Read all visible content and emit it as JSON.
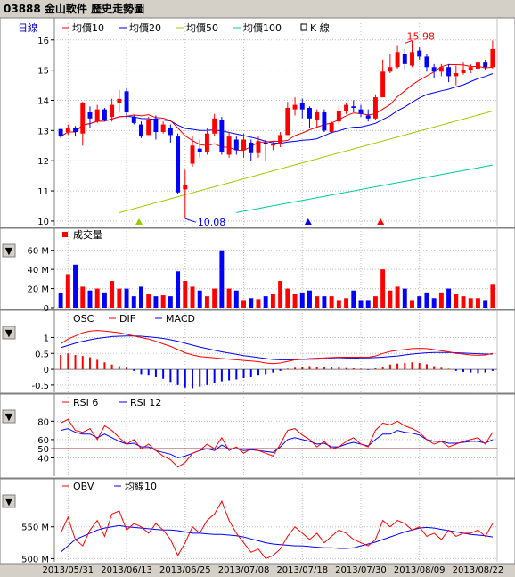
{
  "header": {
    "title": "03888 金山軟件  歷史走勢圖"
  },
  "toggle_glyph": "▼",
  "dates": [
    "2013/05/31",
    "2013/06/13",
    "2013/06/25",
    "2013/07/08",
    "2013/07/18",
    "2013/07/30",
    "2013/08/09",
    "2013/08/22"
  ],
  "colors": {
    "up": "#ff0000",
    "down": "#0000ff",
    "ma10": "#ff0000",
    "ma20": "#0000ff",
    "ma50": "#99cc00",
    "ma100": "#00cc99",
    "grid": "#c0c0c0"
  },
  "chart_data": [
    {
      "type": "candlestick",
      "panel": "price",
      "period_label": "日線",
      "legend": [
        "均價10",
        "均價20",
        "均價50",
        "均價100",
        "K 線"
      ],
      "ylim": [
        9.85,
        16.2
      ],
      "yticks": [
        10,
        11,
        12,
        13,
        14,
        15,
        16
      ],
      "annotations": {
        "high": "15.98",
        "low": "10.08"
      },
      "ohlc": [
        [
          13.05,
          12.8,
          13.05,
          12.75
        ],
        [
          12.95,
          13.1,
          13.2,
          12.85
        ],
        [
          13.1,
          12.95,
          13.15,
          12.8
        ],
        [
          12.9,
          13.9,
          13.95,
          12.5
        ],
        [
          13.6,
          13.4,
          13.8,
          13.1
        ],
        [
          13.3,
          13.7,
          13.85,
          13.25
        ],
        [
          13.7,
          13.35,
          13.75,
          13.3
        ],
        [
          13.45,
          13.85,
          14.05,
          13.3
        ],
        [
          13.9,
          14.05,
          14.35,
          13.6
        ],
        [
          14.3,
          13.6,
          14.4,
          13.4
        ],
        [
          13.45,
          13.25,
          13.5,
          13.2
        ],
        [
          13.2,
          12.8,
          13.3,
          12.75
        ],
        [
          12.85,
          13.35,
          13.45,
          12.85
        ],
        [
          13.4,
          12.95,
          13.5,
          12.7
        ],
        [
          12.95,
          13.2,
          13.3,
          12.9
        ],
        [
          13.1,
          12.85,
          13.2,
          12.6
        ],
        [
          12.8,
          10.95,
          12.9,
          10.9
        ],
        [
          11.05,
          11.2,
          11.7,
          10.1
        ],
        [
          11.9,
          12.5,
          12.8,
          11.8
        ],
        [
          12.4,
          12.3,
          12.7,
          12.1
        ],
        [
          12.3,
          12.9,
          13.1,
          12.2
        ],
        [
          12.9,
          13.4,
          13.55,
          12.8
        ],
        [
          13.35,
          12.3,
          13.45,
          12.2
        ],
        [
          12.2,
          12.8,
          12.95,
          12.1
        ],
        [
          12.7,
          12.35,
          12.8,
          12.2
        ],
        [
          12.35,
          12.7,
          12.9,
          12.1
        ],
        [
          12.6,
          12.25,
          12.7,
          12.0
        ],
        [
          12.25,
          12.65,
          12.8,
          12.1
        ],
        [
          12.6,
          12.55,
          12.7,
          12.0
        ],
        [
          12.5,
          12.55,
          12.65,
          12.35
        ],
        [
          12.55,
          12.85,
          12.95,
          12.45
        ],
        [
          12.85,
          13.75,
          13.95,
          12.85
        ],
        [
          13.7,
          13.85,
          14.1,
          13.5
        ],
        [
          13.9,
          13.7,
          14.05,
          13.4
        ],
        [
          13.75,
          13.4,
          13.8,
          13.1
        ],
        [
          13.35,
          13.6,
          13.7,
          13.1
        ],
        [
          13.6,
          13.0,
          13.7,
          12.95
        ],
        [
          12.95,
          13.25,
          13.3,
          12.9
        ],
        [
          13.3,
          13.65,
          13.8,
          13.2
        ],
        [
          13.65,
          13.85,
          13.9,
          13.55
        ],
        [
          13.8,
          13.75,
          14.0,
          13.6
        ],
        [
          13.7,
          13.55,
          13.85,
          13.45
        ],
        [
          13.5,
          13.4,
          13.7,
          13.3
        ],
        [
          13.4,
          14.1,
          14.2,
          13.35
        ],
        [
          14.1,
          14.95,
          15.35,
          14.1
        ],
        [
          14.95,
          15.1,
          15.55,
          14.9
        ],
        [
          15.1,
          15.6,
          15.8,
          15.05
        ],
        [
          15.55,
          15.2,
          15.7,
          15.0
        ],
        [
          15.15,
          15.6,
          15.98,
          15.1
        ],
        [
          15.65,
          15.45,
          15.75,
          15.35
        ],
        [
          15.45,
          15.1,
          15.55,
          14.95
        ],
        [
          15.1,
          14.95,
          15.2,
          14.75
        ],
        [
          14.95,
          15.1,
          15.2,
          14.8
        ],
        [
          15.1,
          14.8,
          15.2,
          14.6
        ],
        [
          14.8,
          14.9,
          15.15,
          14.5
        ],
        [
          14.9,
          15.0,
          15.25,
          14.85
        ],
        [
          15.0,
          15.1,
          15.2,
          14.9
        ],
        [
          15.05,
          15.25,
          15.35,
          14.95
        ],
        [
          15.25,
          15.1,
          15.35,
          15.0
        ],
        [
          15.1,
          15.7,
          15.98,
          15.05
        ]
      ]
    },
    {
      "type": "bar",
      "panel": "volume",
      "legend": [
        "成交量"
      ],
      "unit": "M",
      "ylim": [
        0,
        70
      ],
      "yticks": [
        0,
        20,
        40,
        60
      ],
      "ytick_labels": [
        "0",
        "20 M",
        "40 M",
        "60 M"
      ],
      "values": [
        15,
        35,
        45,
        22,
        18,
        20,
        16,
        28,
        20,
        20,
        12,
        22,
        14,
        12,
        13,
        12,
        38,
        28,
        22,
        18,
        12,
        20,
        60,
        20,
        18,
        8,
        10,
        9,
        12,
        14,
        28,
        20,
        14,
        16,
        18,
        12,
        12,
        12,
        8,
        10,
        18,
        8,
        8,
        12,
        40,
        18,
        22,
        20,
        8,
        12,
        16,
        10,
        16,
        20,
        14,
        12,
        10,
        10,
        8,
        24
      ]
    },
    {
      "type": "line+bar",
      "panel": "macd",
      "legend": [
        "OSC",
        "DIF",
        "MACD"
      ],
      "ylim": [
        -0.7,
        1.35
      ],
      "yticks": [
        -0.5,
        0,
        0.5,
        1
      ],
      "ytick_labels": [
        "-0.5",
        "0",
        "0.5",
        "1"
      ],
      "series": [
        {
          "name": "DIF",
          "values": [
            0.8,
            0.95,
            1.05,
            1.15,
            1.2,
            1.22,
            1.2,
            1.18,
            1.15,
            1.1,
            1.05,
            1.0,
            0.95,
            0.88,
            0.8,
            0.72,
            0.62,
            0.52,
            0.45,
            0.4,
            0.38,
            0.36,
            0.34,
            0.32,
            0.3,
            0.28,
            0.26,
            0.24,
            0.2,
            0.18,
            0.2,
            0.25,
            0.3,
            0.32,
            0.34,
            0.35,
            0.36,
            0.37,
            0.38,
            0.38,
            0.38,
            0.38,
            0.38,
            0.42,
            0.5,
            0.56,
            0.6,
            0.62,
            0.65,
            0.66,
            0.65,
            0.62,
            0.58,
            0.55,
            0.5,
            0.48,
            0.45,
            0.44,
            0.45,
            0.5
          ]
        },
        {
          "name": "MACD",
          "values": [
            0.68,
            0.75,
            0.82,
            0.88,
            0.93,
            0.97,
            1.0,
            1.03,
            1.04,
            1.05,
            1.05,
            1.04,
            1.02,
            1.0,
            0.97,
            0.93,
            0.88,
            0.82,
            0.76,
            0.7,
            0.65,
            0.6,
            0.55,
            0.51,
            0.47,
            0.43,
            0.4,
            0.37,
            0.34,
            0.31,
            0.3,
            0.3,
            0.3,
            0.31,
            0.32,
            0.32,
            0.33,
            0.34,
            0.34,
            0.35,
            0.35,
            0.36,
            0.36,
            0.37,
            0.38,
            0.4,
            0.42,
            0.45,
            0.48,
            0.5,
            0.52,
            0.53,
            0.53,
            0.53,
            0.52,
            0.51,
            0.5,
            0.49,
            0.48,
            0.48
          ]
        },
        {
          "name": "OSC",
          "values": [
            0.45,
            0.5,
            0.45,
            0.42,
            0.38,
            0.3,
            0.22,
            0.15,
            0.1,
            0.05,
            -0.05,
            -0.15,
            -0.2,
            -0.25,
            -0.3,
            -0.4,
            -0.5,
            -0.58,
            -0.6,
            -0.55,
            -0.5,
            -0.42,
            -0.38,
            -0.35,
            -0.32,
            -0.28,
            -0.25,
            -0.2,
            -0.15,
            -0.1,
            -0.05,
            0.02,
            0.05,
            0.08,
            0.1,
            0.08,
            0.06,
            0.06,
            0.06,
            0.04,
            0.03,
            0.02,
            -0.02,
            0.03,
            0.08,
            0.15,
            0.18,
            0.2,
            0.22,
            0.2,
            0.16,
            0.1,
            0.05,
            0.02,
            -0.05,
            -0.08,
            -0.1,
            -0.12,
            -0.1,
            -0.05
          ]
        }
      ]
    },
    {
      "type": "line",
      "panel": "rsi",
      "legend": [
        "RSI 6",
        "RSI 12"
      ],
      "ylim": [
        20,
        92
      ],
      "yticks": [
        40,
        50,
        60,
        80
      ],
      "ytick_labels": [
        "40",
        "50",
        "60",
        "80"
      ],
      "reference_line": 50,
      "series": [
        {
          "name": "RSI 6",
          "values": [
            78,
            82,
            70,
            68,
            72,
            60,
            75,
            70,
            62,
            55,
            60,
            50,
            55,
            48,
            42,
            38,
            30,
            35,
            45,
            48,
            55,
            50,
            62,
            48,
            52,
            45,
            50,
            48,
            45,
            42,
            55,
            70,
            72,
            65,
            60,
            52,
            58,
            50,
            52,
            58,
            62,
            55,
            52,
            70,
            78,
            76,
            80,
            75,
            72,
            68,
            60,
            55,
            58,
            52,
            55,
            58,
            60,
            62,
            55,
            68
          ]
        },
        {
          "name": "RSI 12",
          "values": [
            70,
            72,
            68,
            66,
            66,
            62,
            66,
            62,
            58,
            55,
            56,
            52,
            52,
            48,
            46,
            44,
            40,
            42,
            45,
            48,
            50,
            48,
            54,
            50,
            50,
            48,
            49,
            48,
            47,
            46,
            52,
            60,
            62,
            60,
            58,
            55,
            56,
            52,
            52,
            55,
            57,
            55,
            53,
            60,
            66,
            66,
            70,
            68,
            67,
            65,
            60,
            58,
            58,
            56,
            56,
            57,
            58,
            58,
            56,
            60
          ]
        }
      ]
    },
    {
      "type": "line",
      "panel": "obv",
      "legend": [
        "OBV",
        "均線10"
      ],
      "ylim": [
        495,
        600
      ],
      "yticks": [
        500,
        550
      ],
      "ytick_labels": [
        "500 M",
        "550 M"
      ],
      "series": [
        {
          "name": "OBV",
          "values": [
            540,
            565,
            530,
            520,
            545,
            560,
            535,
            570,
            575,
            545,
            555,
            550,
            540,
            555,
            545,
            530,
            505,
            525,
            550,
            540,
            560,
            570,
            590,
            560,
            540,
            525,
            510,
            515,
            500,
            505,
            515,
            535,
            550,
            540,
            530,
            540,
            525,
            535,
            545,
            540,
            530,
            525,
            520,
            530,
            560,
            550,
            560,
            555,
            545,
            550,
            535,
            540,
            530,
            545,
            535,
            540,
            540,
            545,
            535,
            555
          ]
        },
        {
          "name": "均線10",
          "values": [
            510,
            520,
            530,
            535,
            540,
            545,
            548,
            550,
            552,
            550,
            549,
            548,
            547,
            546,
            545,
            545,
            544,
            542,
            540,
            540,
            539,
            538,
            538,
            537,
            536,
            534,
            531,
            528,
            525,
            523,
            522,
            521,
            520,
            520,
            519,
            518,
            517,
            517,
            516,
            516,
            517,
            520,
            523,
            526,
            530,
            534,
            538,
            542,
            545,
            548,
            549,
            548,
            546,
            544,
            542,
            540,
            538,
            537,
            536,
            534
          ]
        }
      ]
    }
  ]
}
